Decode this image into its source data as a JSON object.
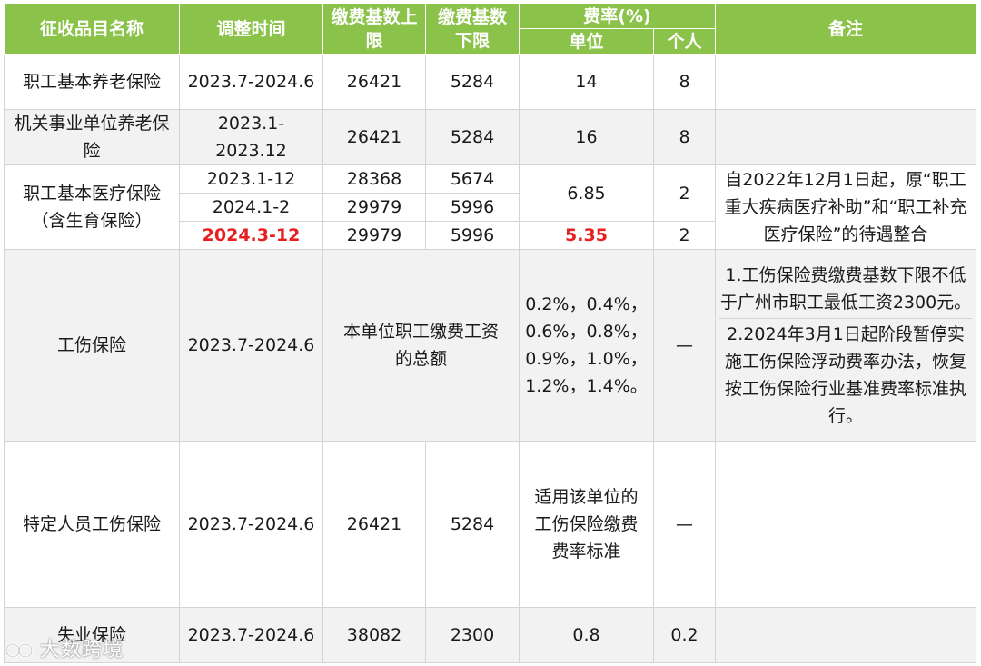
{
  "header": {
    "col_name": "征收品目名称",
    "col_period": "调整时间",
    "col_upper": "缴费基数上限",
    "col_lower": "缴费基数下限",
    "col_rate": "费率(%)",
    "col_rate_unit": "单位",
    "col_rate_person": "个人",
    "col_note": "备注"
  },
  "rows": {
    "pension_staff": {
      "name": "职工基本养老保险",
      "period": "2023.7-2024.6",
      "upper": "26421",
      "lower": "5284",
      "unit": "14",
      "person": "8",
      "note": ""
    },
    "pension_inst": {
      "name": "机关事业单位养老保险",
      "period": "2023.1-2023.12",
      "upper": "26421",
      "lower": "5284",
      "unit": "16",
      "person": "8",
      "note": ""
    },
    "medical": {
      "name": "职工基本医疗保险（含生育保险）",
      "sub1": {
        "period": "2023.1-12",
        "upper": "28368",
        "lower": "5674"
      },
      "sub2": {
        "period": "2024.1-2",
        "upper": "29979",
        "lower": "5996"
      },
      "rate12_unit": "6.85",
      "rate12_person": "2",
      "sub3": {
        "period": "2024.3-12",
        "upper": "29979",
        "lower": "5996",
        "unit": "5.35",
        "person": "2"
      },
      "note": "自2022年12月1日起，原“职工重大疾病医疗补助”和“职工补充医疗保险”的待遇整合"
    },
    "injury": {
      "name": "工伤保险",
      "period": "2023.7-2024.6",
      "base": "本单位职工缴费工资的总额",
      "rates": "0.2%，0.4%，0.6%，0.8%，0.9%，1.0%，1.2%，1.4%。",
      "person": "—",
      "note1": "1.工伤保险费缴费基数下限不低于广州市职工最低工资2300元。",
      "note2": "2.2024年3月1日起阶段暂停实施工伤保险浮动费率办法，恢复按工伤保险行业基准费率标准执行。"
    },
    "injury_special": {
      "name": "特定人员工伤保险",
      "period": "2023.7-2024.6",
      "upper": "26421",
      "lower": "5284",
      "unit": "适用该单位的工伤保险缴费费率标准",
      "person": "—",
      "note": ""
    },
    "unemployment": {
      "name": "失业保险",
      "period": "2023.7-2024.6",
      "upper": "38082",
      "lower": "2300",
      "unit": "0.8",
      "person": "0.2",
      "note": ""
    }
  },
  "watermark": "大数跨境",
  "colors": {
    "header_bg": "#8bc34a",
    "highlight": "#e62020",
    "alt_row": "#f2f2f2"
  }
}
